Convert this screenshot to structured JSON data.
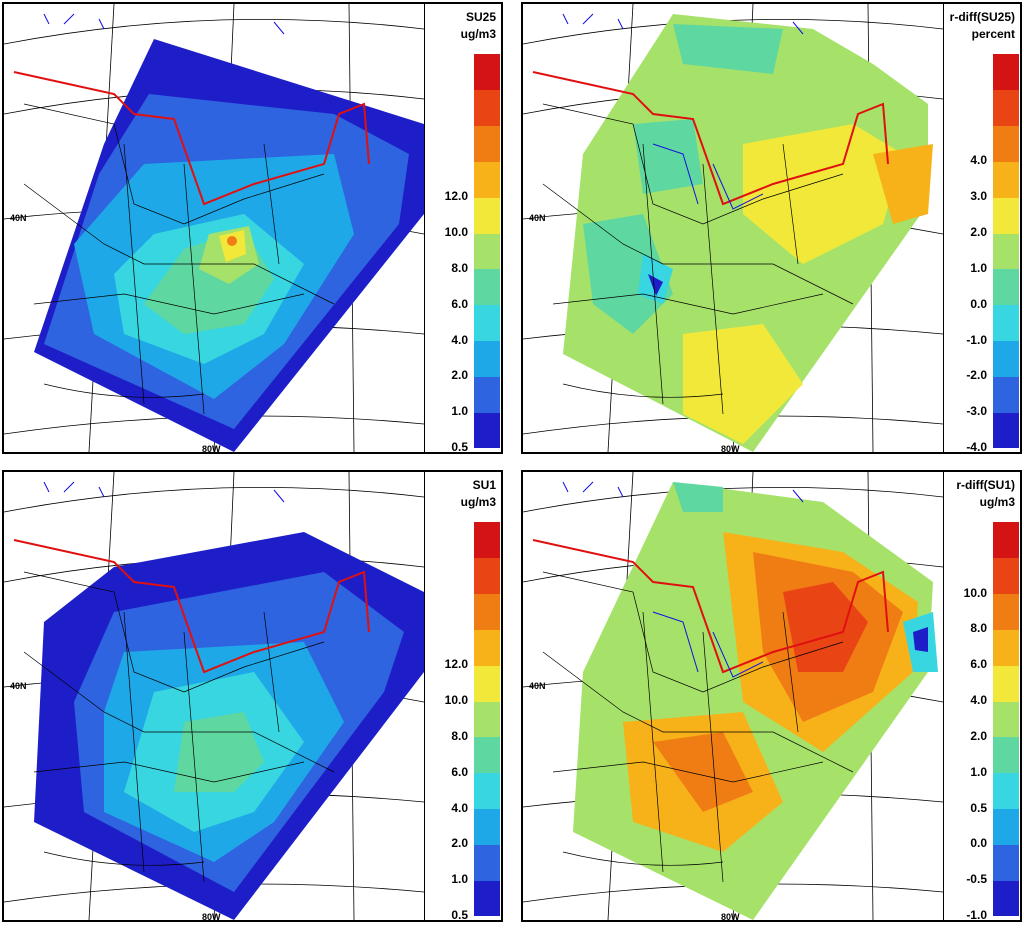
{
  "lat_label": "40N",
  "lon_label": "80W",
  "panels": [
    {
      "id": "su25",
      "title_line1": "SU25",
      "title_line2": "ug/m3",
      "colors": [
        "#1e1ec8",
        "#2e64e0",
        "#1fa8e8",
        "#38d6e0",
        "#5fd7a0",
        "#a6e26a",
        "#f2e83a",
        "#f7b21a",
        "#f07d14",
        "#e84414",
        "#d41414"
      ],
      "labels": [
        "0.5",
        "1.0",
        "2.0",
        "4.0",
        "6.0",
        "8.0",
        "10.0",
        "12.0"
      ],
      "label_colors_index": [
        0,
        1,
        2,
        3,
        4,
        5,
        6,
        7
      ]
    },
    {
      "id": "rdiff-su25",
      "title_line1": "r-diff(SU25)",
      "title_line2": "percent",
      "colors": [
        "#1e1ec8",
        "#2e64e0",
        "#1fa8e8",
        "#38d6e0",
        "#5fd7a0",
        "#a6e26a",
        "#f2e83a",
        "#f7b21a",
        "#f07d14",
        "#e84414",
        "#d41414"
      ],
      "labels": [
        "-4.0",
        "-3.0",
        "-2.0",
        "-1.0",
        "0.0",
        "1.0",
        "2.0",
        "3.0",
        "4.0"
      ]
    },
    {
      "id": "su1",
      "title_line1": "SU1",
      "title_line2": "ug/m3",
      "colors": [
        "#1e1ec8",
        "#2e64e0",
        "#1fa8e8",
        "#38d6e0",
        "#5fd7a0",
        "#a6e26a",
        "#f2e83a",
        "#f7b21a",
        "#f07d14",
        "#e84414",
        "#d41414"
      ],
      "labels": [
        "0.5",
        "1.0",
        "2.0",
        "4.0",
        "6.0",
        "8.0",
        "10.0",
        "12.0"
      ]
    },
    {
      "id": "rdiff-su1",
      "title_line1": "r-diff(SU1)",
      "title_line2": "ug/m3",
      "colors": [
        "#1e1ec8",
        "#2e64e0",
        "#1fa8e8",
        "#38d6e0",
        "#5fd7a0",
        "#a6e26a",
        "#f2e83a",
        "#f7b21a",
        "#f07d14",
        "#e84414",
        "#d41414"
      ],
      "labels": [
        "-1.0",
        "-0.5",
        "0.0",
        "0.5",
        "1.0",
        "2.0",
        "4.0",
        "6.0",
        "8.0",
        "10.0"
      ]
    }
  ]
}
